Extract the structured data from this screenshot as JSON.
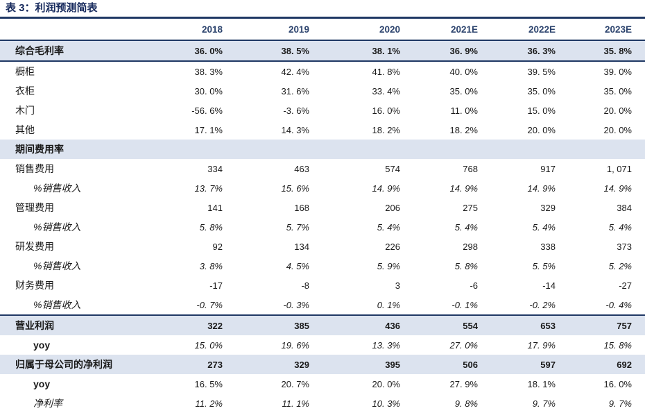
{
  "title": "表 3：利润预测简表",
  "table": {
    "columns": [
      "2018",
      "2019",
      "2020",
      "2021E",
      "2022E",
      "2023E"
    ],
    "rows": [
      {
        "label": "综合毛利率",
        "style": "section gross",
        "values": [
          "36. 0%",
          "38. 5%",
          "38. 1%",
          "36. 9%",
          "36. 3%",
          "35. 8%"
        ]
      },
      {
        "label": "橱柜",
        "style": "plain",
        "values": [
          "38. 3%",
          "42. 4%",
          "41. 8%",
          "40. 0%",
          "39. 5%",
          "39. 0%"
        ]
      },
      {
        "label": "衣柜",
        "style": "plain",
        "values": [
          "30. 0%",
          "31. 6%",
          "33. 4%",
          "35. 0%",
          "35. 0%",
          "35. 0%"
        ]
      },
      {
        "label": "木门",
        "style": "plain",
        "values": [
          "-56. 6%",
          "-3. 6%",
          "16. 0%",
          "11. 0%",
          "15. 0%",
          "20. 0%"
        ]
      },
      {
        "label": "其他",
        "style": "plain",
        "values": [
          "17. 1%",
          "14. 3%",
          "18. 2%",
          "18. 2%",
          "20. 0%",
          "20. 0%"
        ]
      },
      {
        "label": "期间费用率",
        "style": "section",
        "values": [
          "",
          "",
          "",
          "",
          "",
          ""
        ]
      },
      {
        "label": "销售费用",
        "style": "plain",
        "values": [
          "334",
          "463",
          "574",
          "768",
          "917",
          "1, 071"
        ]
      },
      {
        "label": "%销售收入",
        "style": "pct",
        "values": [
          "13. 7%",
          "15. 6%",
          "14. 9%",
          "14. 9%",
          "14. 9%",
          "14. 9%"
        ]
      },
      {
        "label": "管理费用",
        "style": "plain",
        "values": [
          "141",
          "168",
          "206",
          "275",
          "329",
          "384"
        ]
      },
      {
        "label": "%销售收入",
        "style": "pct",
        "values": [
          "5. 8%",
          "5. 7%",
          "5. 4%",
          "5. 4%",
          "5. 4%",
          "5. 4%"
        ]
      },
      {
        "label": "研发费用",
        "style": "plain",
        "values": [
          "92",
          "134",
          "226",
          "298",
          "338",
          "373"
        ]
      },
      {
        "label": "%销售收入",
        "style": "pct",
        "values": [
          "3. 8%",
          "4. 5%",
          "5. 9%",
          "5. 8%",
          "5. 5%",
          "5. 2%"
        ]
      },
      {
        "label": "财务费用",
        "style": "plain",
        "values": [
          "-17",
          "-8",
          "3",
          "-6",
          "-14",
          "-27"
        ]
      },
      {
        "label": "%销售收入",
        "style": "pct",
        "values": [
          "-0. 7%",
          "-0. 3%",
          "0. 1%",
          "-0. 1%",
          "-0. 2%",
          "-0. 4%"
        ]
      },
      {
        "label": "营业利润",
        "style": "section topline",
        "values": [
          "322",
          "385",
          "436",
          "554",
          "653",
          "757"
        ]
      },
      {
        "label": "yoy",
        "style": "yoy-italic",
        "values": [
          "15. 0%",
          "19. 6%",
          "13. 3%",
          "27. 0%",
          "17. 9%",
          "15. 8%"
        ]
      },
      {
        "label": "归属于母公司的净利润",
        "style": "section",
        "values": [
          "273",
          "329",
          "395",
          "506",
          "597",
          "692"
        ]
      },
      {
        "label": "yoy",
        "style": "yoy",
        "values": [
          "16. 5%",
          "20. 7%",
          "20. 0%",
          "27. 9%",
          "18. 1%",
          "16. 0%"
        ]
      },
      {
        "label": "净利率",
        "style": "netmargin",
        "values": [
          "11. 2%",
          "11. 1%",
          "10. 3%",
          "9. 8%",
          "9. 7%",
          "9. 7%"
        ]
      }
    ]
  },
  "colors": {
    "navy_line": "#1f3864",
    "title_text": "#16295c",
    "header_text": "#2d446e",
    "band_bg": "#dce3ef"
  }
}
